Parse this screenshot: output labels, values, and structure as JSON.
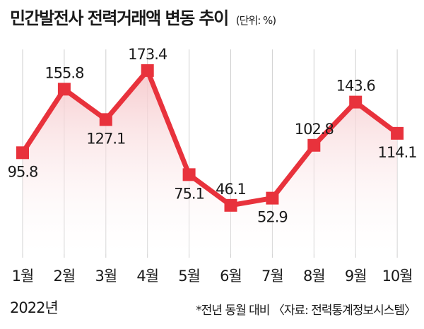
{
  "header": {
    "title": "민간발전사 전력거래액 변동 추이",
    "unit": "(단위: %)"
  },
  "footer": {
    "year": "2022년",
    "note": "*전년 동월 대비 〈자료: 전력통계정보시스템〉"
  },
  "colors": {
    "line": "#e8323c",
    "fill_top": "#f6c9cc",
    "grid": "#cfcfcf"
  },
  "chart_data": {
    "type": "line",
    "title": "민간발전사 전력거래액 변동 추이",
    "categories": [
      "1월",
      "2월",
      "3월",
      "4월",
      "5월",
      "6월",
      "7월",
      "8월",
      "9월",
      "10월"
    ],
    "values": [
      95.8,
      155.8,
      127.1,
      173.4,
      75.1,
      46.1,
      52.9,
      102.8,
      143.6,
      114.1
    ],
    "value_labels": [
      "95.8",
      "155.8",
      "127.1",
      "173.4",
      "75.1",
      "46.1",
      "52.9",
      "102.8",
      "143.6",
      "114.1"
    ],
    "xlabel": "",
    "ylabel": "",
    "ylim": [
      0,
      190
    ],
    "grid": "vertical",
    "legend": "none"
  }
}
